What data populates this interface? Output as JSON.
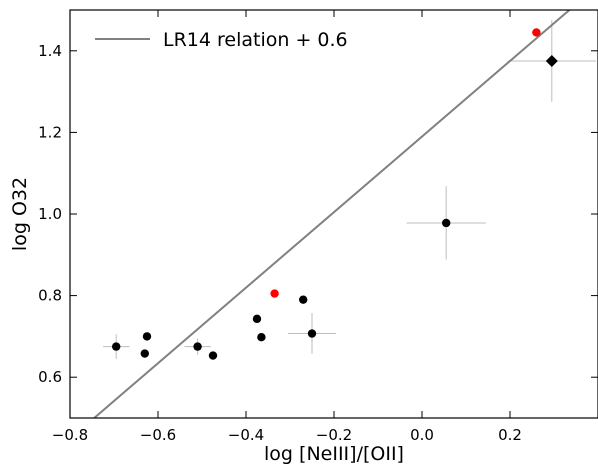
{
  "chart_data": {
    "type": "scatter",
    "xlabel": "log [NeIII]/[OII]",
    "ylabel": "log O32",
    "xlim": [
      -0.8,
      0.4
    ],
    "ylim": [
      0.5,
      1.5
    ],
    "xticks": [
      -0.8,
      -0.6,
      -0.4,
      -0.2,
      0.0,
      0.2
    ],
    "yticks": [
      0.6,
      0.8,
      1.0,
      1.2,
      1.4
    ],
    "xtick_labels": [
      "−0.8",
      "−0.6",
      "−0.4",
      "−0.2",
      "0.0",
      "0.2"
    ],
    "ytick_labels": [
      "0.6",
      "0.8",
      "1.0",
      "1.2",
      "1.4"
    ],
    "grid": false,
    "legend_position": "top-left",
    "line": {
      "name": "LR14 relation + 0.6",
      "color": "#808080",
      "x": [
        -0.745,
        0.335
      ],
      "y": [
        0.5,
        1.5
      ]
    },
    "points": [
      {
        "x": -0.695,
        "y": 0.675,
        "color": "#000000",
        "marker": "circle",
        "xerr": 0.03,
        "yerr": 0.03
      },
      {
        "x": -0.63,
        "y": 0.658,
        "color": "#000000",
        "marker": "circle",
        "xerr": 0,
        "yerr": 0
      },
      {
        "x": -0.625,
        "y": 0.7,
        "color": "#000000",
        "marker": "circle",
        "xerr": 0,
        "yerr": 0
      },
      {
        "x": -0.51,
        "y": 0.675,
        "color": "#000000",
        "marker": "circle",
        "xerr": 0.03,
        "yerr": 0.02
      },
      {
        "x": -0.475,
        "y": 0.653,
        "color": "#000000",
        "marker": "circle",
        "xerr": 0,
        "yerr": 0
      },
      {
        "x": -0.375,
        "y": 0.743,
        "color": "#000000",
        "marker": "circle",
        "xerr": 0,
        "yerr": 0
      },
      {
        "x": -0.365,
        "y": 0.698,
        "color": "#000000",
        "marker": "circle",
        "xerr": 0,
        "yerr": 0
      },
      {
        "x": -0.27,
        "y": 0.79,
        "color": "#000000",
        "marker": "circle",
        "xerr": 0,
        "yerr": 0
      },
      {
        "x": -0.25,
        "y": 0.707,
        "color": "#000000",
        "marker": "circle",
        "xerr": 0.055,
        "yerr": 0.05
      },
      {
        "x": 0.055,
        "y": 0.978,
        "color": "#000000",
        "marker": "circle",
        "xerr": 0.09,
        "yerr": 0.09
      },
      {
        "x": -0.335,
        "y": 0.805,
        "color": "#ff0000",
        "marker": "circle",
        "xerr": 0,
        "yerr": 0
      },
      {
        "x": 0.26,
        "y": 1.445,
        "color": "#ff0000",
        "marker": "circle",
        "xerr": 0,
        "yerr": 0
      },
      {
        "x": 0.295,
        "y": 1.375,
        "color": "#000000",
        "marker": "diamond",
        "xerr": 0.1,
        "yerr": 0.1
      }
    ]
  }
}
